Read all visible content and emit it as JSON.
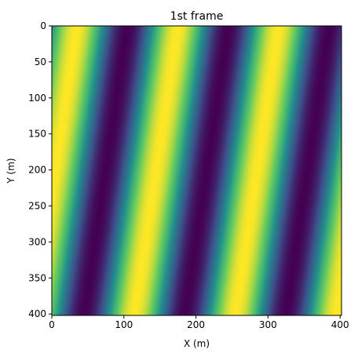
{
  "chart_data": {
    "type": "heatmap",
    "title": "1st frame",
    "xlabel": "X (m)",
    "ylabel": "Y (m)",
    "xlim": [
      0,
      402
    ],
    "ylim": [
      402,
      0
    ],
    "xticks": [
      0,
      100,
      200,
      300,
      400
    ],
    "yticks": [
      0,
      50,
      100,
      150,
      200,
      250,
      300,
      350,
      400
    ],
    "colormap": "viridis",
    "colorscale": [
      "#440154",
      "#3b528b",
      "#21918c",
      "#5ec962",
      "#fde725"
    ],
    "grid": false,
    "field": {
      "form": "sinusoidal plane wave",
      "wavelength_x_m": 140,
      "stripe_drift_x_per_y": -0.15,
      "phase_x_at_y0_m": 0
    }
  }
}
